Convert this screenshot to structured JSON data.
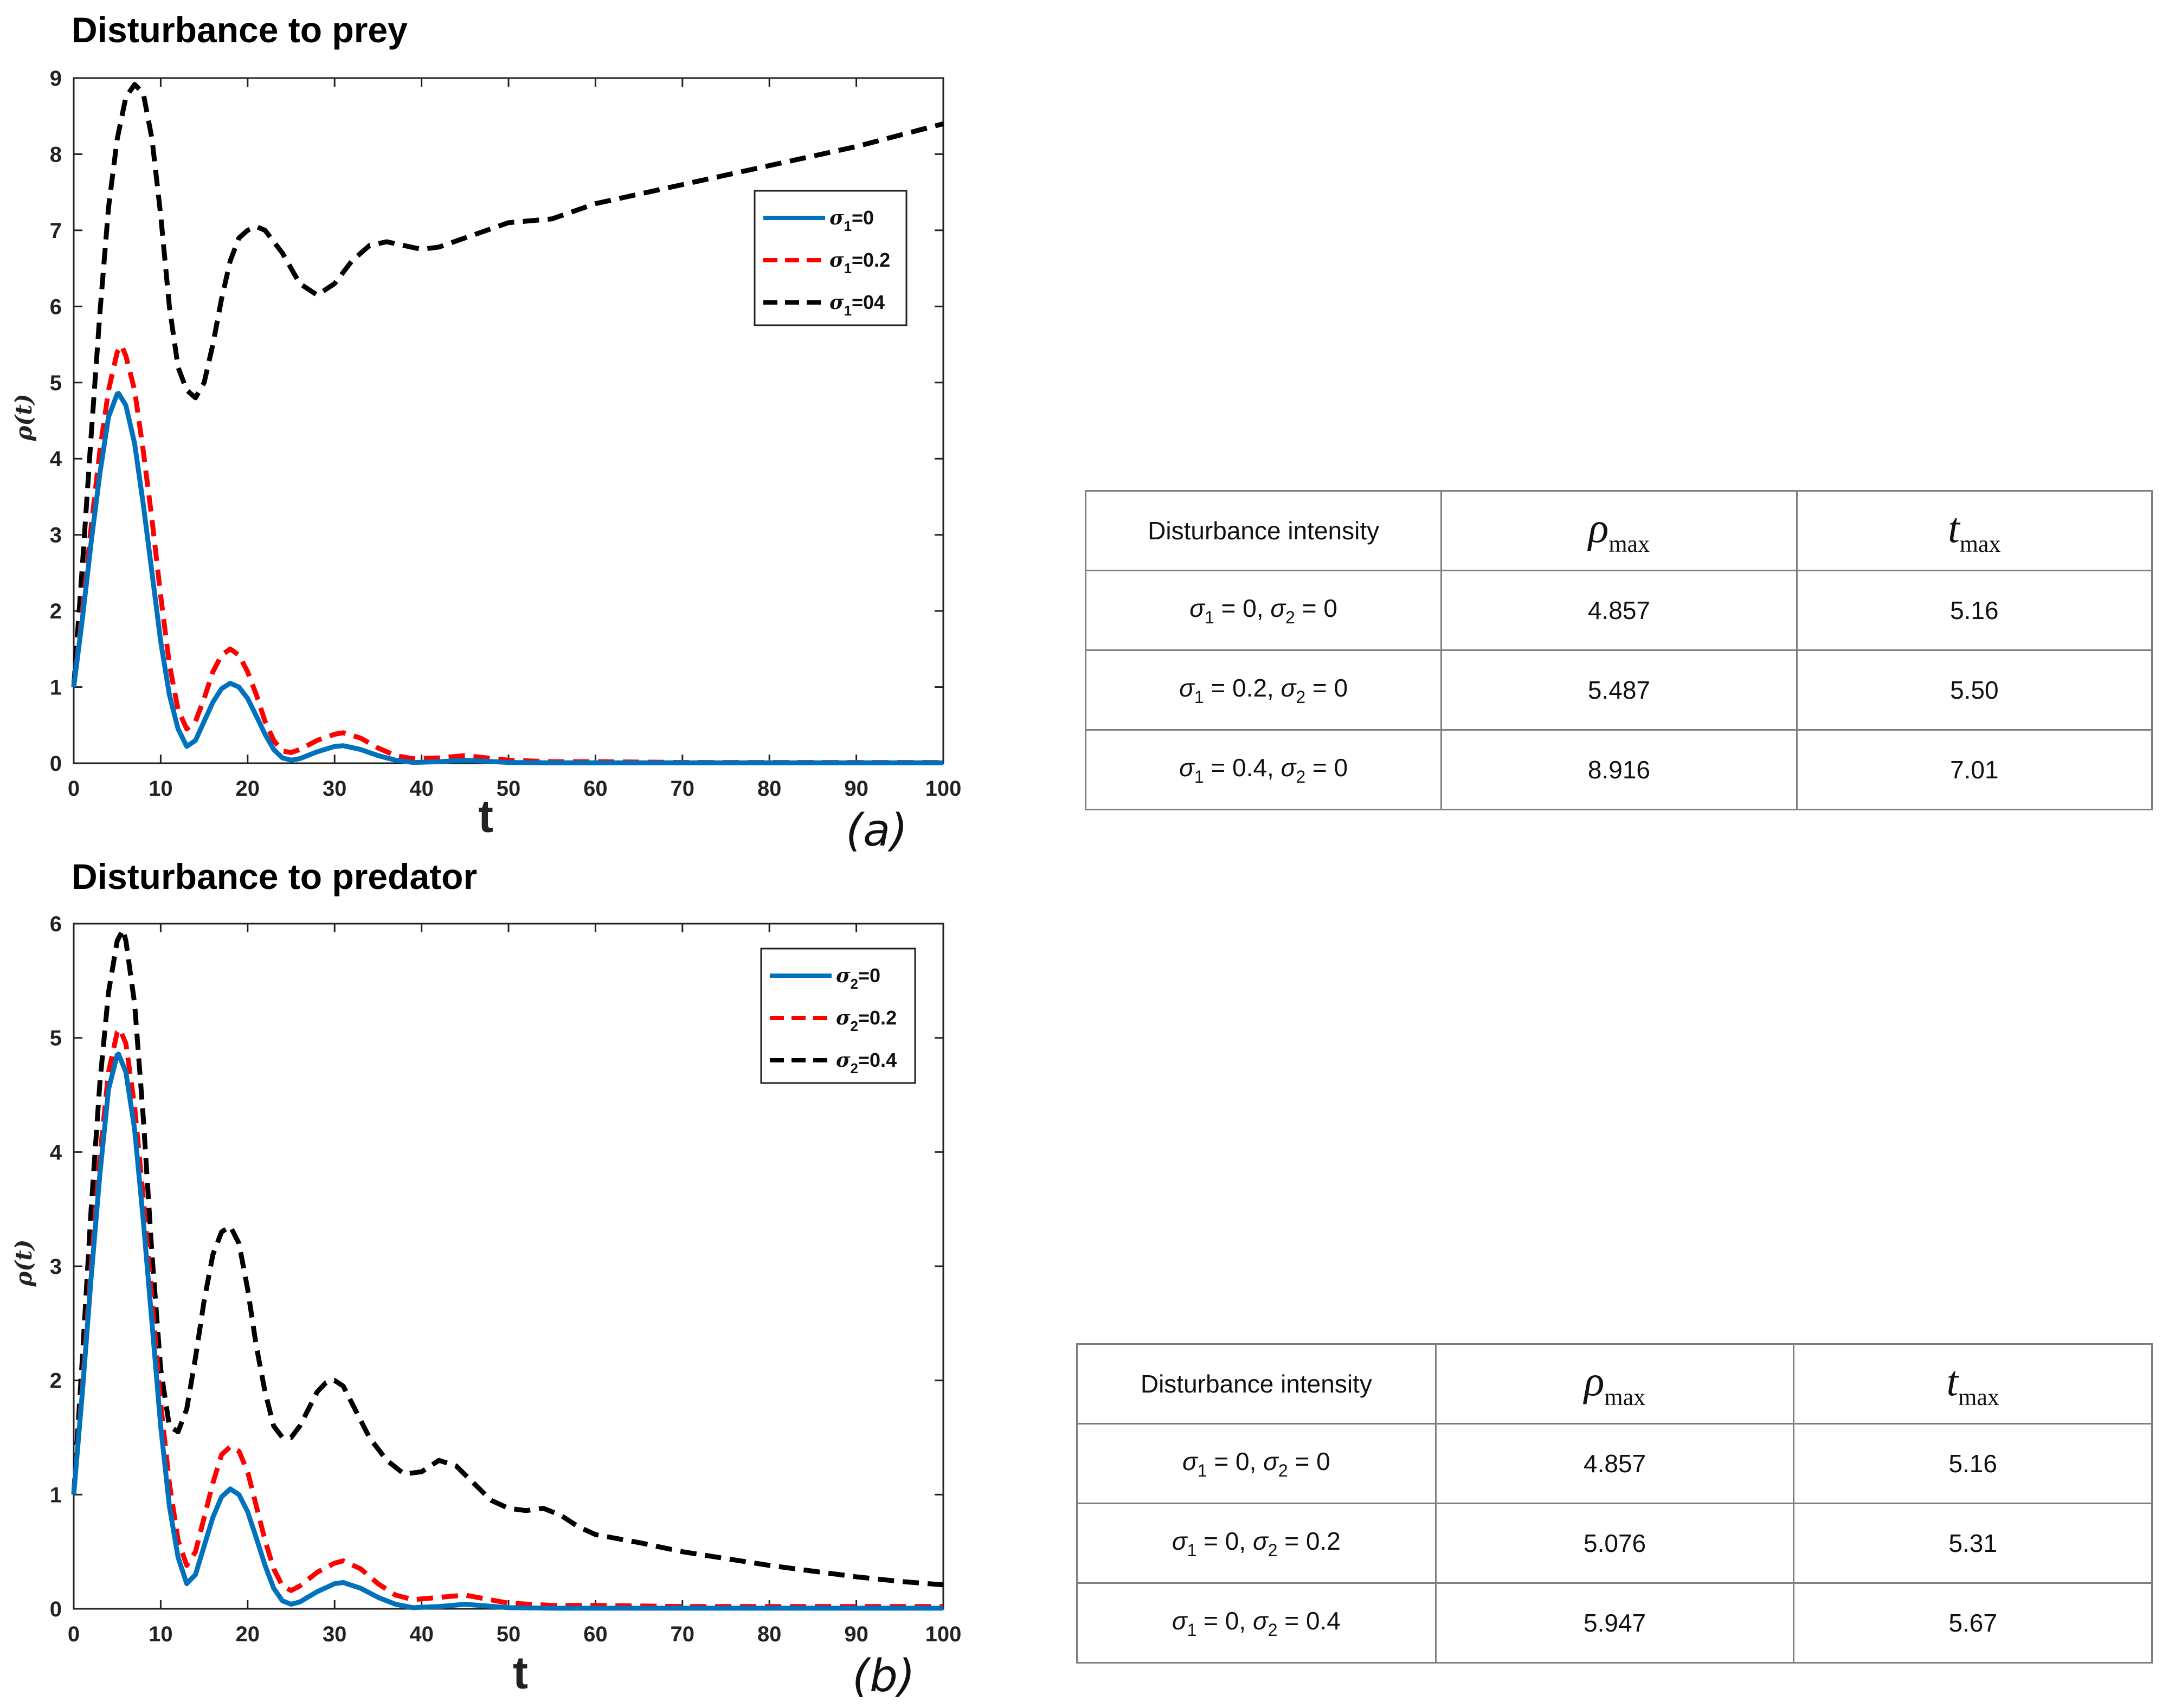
{
  "chart_data": [
    {
      "type": "line",
      "title": "Disturbance to prey",
      "xlabel": "t",
      "ylabel": "ρ(t)",
      "panel_label": "(a)",
      "xlim": [
        0,
        100
      ],
      "ylim": [
        0,
        9
      ],
      "xticks": [
        "0",
        "10",
        "20",
        "30",
        "40",
        "50",
        "60",
        "70",
        "80",
        "90",
        "100"
      ],
      "yticks": [
        "0",
        "1",
        "2",
        "3",
        "4",
        "5",
        "6",
        "7",
        "8",
        "9"
      ],
      "legend_position": "top-right",
      "series": [
        {
          "name": "σ₁=0",
          "sigma_sub": "1",
          "sigma_value": "=0",
          "color": "#0072bd",
          "dash": "solid",
          "x": [
            0,
            1,
            2,
            3,
            4,
            5,
            5.16,
            6,
            7,
            8,
            9,
            10,
            11,
            12,
            13,
            14,
            15,
            16,
            17,
            18,
            19,
            20,
            21,
            22,
            23,
            24,
            25,
            26,
            28,
            30,
            31,
            33,
            35,
            37,
            39,
            42,
            45,
            50,
            55,
            60,
            70,
            80,
            90,
            100
          ],
          "y": [
            1,
            1.9,
            2.9,
            3.8,
            4.55,
            4.85,
            4.857,
            4.7,
            4.2,
            3.4,
            2.5,
            1.6,
            0.9,
            0.45,
            0.22,
            0.3,
            0.55,
            0.8,
            0.98,
            1.05,
            1.0,
            0.85,
            0.62,
            0.38,
            0.18,
            0.07,
            0.04,
            0.06,
            0.15,
            0.22,
            0.23,
            0.18,
            0.1,
            0.04,
            0.01,
            0.02,
            0.04,
            0.01,
            0.005,
            0.005,
            0.005,
            0.005,
            0.005,
            0.005
          ]
        },
        {
          "name": "σ₁=0.2",
          "sigma_sub": "1",
          "sigma_value": "=0.2",
          "color": "#ff0000",
          "dash": "dashed",
          "x": [
            0,
            1,
            2,
            3,
            4,
            5,
            5.5,
            6,
            7,
            8,
            9,
            10,
            11,
            12,
            13,
            14,
            15,
            16,
            17,
            18,
            19,
            20,
            21,
            22,
            23,
            24,
            25,
            26,
            28,
            30,
            31,
            33,
            35,
            37,
            39,
            42,
            45,
            50,
            55,
            60,
            70,
            80,
            90,
            100
          ],
          "y": [
            1,
            2.0,
            3.1,
            4.1,
            4.9,
            5.4,
            5.487,
            5.35,
            4.9,
            4.1,
            3.2,
            2.2,
            1.3,
            0.7,
            0.45,
            0.55,
            0.85,
            1.2,
            1.42,
            1.5,
            1.42,
            1.2,
            0.9,
            0.55,
            0.3,
            0.16,
            0.14,
            0.18,
            0.3,
            0.38,
            0.4,
            0.33,
            0.2,
            0.1,
            0.06,
            0.07,
            0.1,
            0.04,
            0.02,
            0.02,
            0.01,
            0.01,
            0.01,
            0.01
          ]
        },
        {
          "name": "σ₁=04",
          "sigma_sub": "1",
          "sigma_value": "=04",
          "color": "#000000",
          "dash": "dashed",
          "x": [
            0,
            1,
            2,
            3,
            4,
            5,
            6,
            7.01,
            8,
            9,
            10,
            11,
            12,
            13,
            14,
            15,
            16,
            17,
            18,
            19,
            20,
            21,
            22,
            24,
            26,
            28,
            30,
            32,
            34,
            36,
            38,
            40,
            42,
            45,
            50,
            55,
            60,
            70,
            80,
            90,
            100
          ],
          "y": [
            1,
            2.6,
            4.3,
            5.9,
            7.3,
            8.2,
            8.75,
            8.916,
            8.8,
            8.2,
            7.2,
            6.0,
            5.2,
            4.9,
            4.8,
            5.0,
            5.5,
            6.1,
            6.6,
            6.9,
            7.0,
            7.05,
            7.0,
            6.7,
            6.3,
            6.15,
            6.3,
            6.6,
            6.8,
            6.85,
            6.8,
            6.75,
            6.78,
            6.9,
            7.1,
            7.15,
            7.35,
            7.6,
            7.85,
            8.1,
            8.4
          ]
        }
      ]
    },
    {
      "type": "line",
      "title": "Disturbance to predator",
      "xlabel": "t",
      "ylabel": "ρ(t)",
      "panel_label": "(b)",
      "xlim": [
        0,
        100
      ],
      "ylim": [
        0,
        6
      ],
      "xticks": [
        "0",
        "10",
        "20",
        "30",
        "40",
        "50",
        "60",
        "70",
        "80",
        "90",
        "100"
      ],
      "yticks": [
        "0",
        "1",
        "2",
        "3",
        "4",
        "5",
        "6"
      ],
      "legend_position": "top-right",
      "series": [
        {
          "name": "σ₂=0",
          "sigma_sub": "2",
          "sigma_value": "=0",
          "color": "#0072bd",
          "dash": "solid",
          "x": [
            0,
            1,
            2,
            3,
            4,
            5,
            5.16,
            6,
            7,
            8,
            9,
            10,
            11,
            12,
            13,
            14,
            15,
            16,
            17,
            18,
            19,
            20,
            21,
            22,
            23,
            24,
            25,
            26,
            28,
            30,
            31,
            33,
            35,
            37,
            39,
            42,
            45,
            50,
            55,
            60,
            70,
            80,
            90,
            100
          ],
          "y": [
            1,
            1.9,
            2.9,
            3.8,
            4.55,
            4.85,
            4.857,
            4.7,
            4.2,
            3.4,
            2.5,
            1.6,
            0.9,
            0.45,
            0.22,
            0.3,
            0.55,
            0.8,
            0.98,
            1.05,
            1.0,
            0.85,
            0.62,
            0.38,
            0.18,
            0.07,
            0.04,
            0.06,
            0.15,
            0.22,
            0.23,
            0.18,
            0.1,
            0.04,
            0.01,
            0.02,
            0.04,
            0.01,
            0.005,
            0.005,
            0.005,
            0.005,
            0.005,
            0.005
          ]
        },
        {
          "name": "σ₂=0.2",
          "sigma_sub": "2",
          "sigma_value": "=0.2",
          "color": "#ff0000",
          "dash": "dashed",
          "x": [
            0,
            1,
            2,
            3,
            4,
            5,
            5.31,
            6,
            7,
            8,
            9,
            10,
            11,
            12,
            13,
            14,
            15,
            16,
            17,
            18,
            19,
            20,
            21,
            22,
            23,
            24,
            25,
            26,
            28,
            30,
            31,
            33,
            35,
            37,
            39,
            42,
            45,
            50,
            55,
            60,
            70,
            80,
            90,
            100
          ],
          "y": [
            1,
            1.95,
            3.0,
            3.95,
            4.7,
            5.05,
            5.076,
            4.95,
            4.4,
            3.6,
            2.7,
            1.8,
            1.1,
            0.6,
            0.38,
            0.5,
            0.8,
            1.1,
            1.35,
            1.42,
            1.38,
            1.2,
            0.9,
            0.6,
            0.35,
            0.2,
            0.16,
            0.2,
            0.32,
            0.4,
            0.42,
            0.35,
            0.22,
            0.12,
            0.08,
            0.1,
            0.12,
            0.05,
            0.03,
            0.03,
            0.02,
            0.02,
            0.02,
            0.02
          ]
        },
        {
          "name": "σ₂=0.4",
          "sigma_sub": "2",
          "sigma_value": "=0.4",
          "color": "#000000",
          "dash": "dashed",
          "x": [
            0,
            1,
            2,
            3,
            4,
            5,
            5.67,
            6,
            7,
            8,
            9,
            10,
            11,
            12,
            13,
            14,
            15,
            16,
            17,
            18,
            19,
            20,
            21,
            22,
            23,
            24,
            25,
            26,
            27,
            28,
            29,
            30,
            31,
            32,
            34,
            36,
            38,
            40,
            42,
            44,
            46,
            48,
            50,
            52,
            54,
            56,
            58,
            60,
            65,
            70,
            75,
            80,
            85,
            90,
            95,
            100
          ],
          "y": [
            1,
            2.2,
            3.5,
            4.6,
            5.4,
            5.85,
            5.947,
            5.85,
            5.3,
            4.3,
            3.1,
            2.1,
            1.6,
            1.55,
            1.75,
            2.2,
            2.7,
            3.1,
            3.3,
            3.35,
            3.2,
            2.8,
            2.3,
            1.9,
            1.6,
            1.5,
            1.5,
            1.6,
            1.75,
            1.9,
            1.98,
            2.0,
            1.95,
            1.8,
            1.5,
            1.3,
            1.18,
            1.2,
            1.3,
            1.25,
            1.1,
            0.95,
            0.88,
            0.86,
            0.88,
            0.82,
            0.72,
            0.65,
            0.58,
            0.5,
            0.44,
            0.38,
            0.33,
            0.28,
            0.24,
            0.21
          ]
        }
      ]
    }
  ],
  "tables": [
    {
      "header": {
        "col1": "Disturbance intensity",
        "col2_symbol": "ρ",
        "col2_sub": "max",
        "col3_symbol": "t",
        "col3_sub": "max"
      },
      "rows": [
        {
          "s1": "0",
          "s2": "0",
          "rho": "4.857",
          "t": "5.16"
        },
        {
          "s1": "0.2",
          "s2": "0",
          "rho": "5.487",
          "t": "5.50"
        },
        {
          "s1": "0.4",
          "s2": "0",
          "rho": "8.916",
          "t": "7.01"
        }
      ]
    },
    {
      "header": {
        "col1": "Disturbance intensity",
        "col2_symbol": "ρ",
        "col2_sub": "max",
        "col3_symbol": "t",
        "col3_sub": "max"
      },
      "rows": [
        {
          "s1": "0",
          "s2": "0",
          "rho": "4.857",
          "t": "5.16"
        },
        {
          "s1": "0",
          "s2": "0.2",
          "rho": "5.076",
          "t": "5.31"
        },
        {
          "s1": "0",
          "s2": "0.4",
          "rho": "5.947",
          "t": "5.67"
        }
      ]
    }
  ],
  "math": {
    "sigma": "σ",
    "sub1": "1",
    "sub2": "2",
    "eq": " = ",
    "comma": ", "
  }
}
